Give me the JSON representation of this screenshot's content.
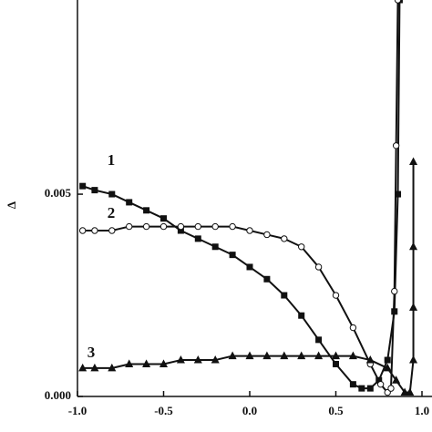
{
  "chart_data": {
    "type": "line",
    "y_label": "Δ",
    "xlim": [
      -1.0,
      1.0
    ],
    "ylim": [
      0,
      0.0098
    ],
    "xticks": [
      {
        "value": -1.0,
        "label": "-1.0"
      },
      {
        "value": -0.5,
        "label": "-0.5"
      },
      {
        "value": 0.0,
        "label": "0.0"
      },
      {
        "value": 0.5,
        "label": "0.5"
      },
      {
        "value": 1.0,
        "label": "1.0"
      }
    ],
    "yticks": [
      {
        "value": 0,
        "label": "0.000"
      },
      {
        "value": 0.005,
        "label": "0.005"
      }
    ],
    "annotations": [
      "1",
      "2",
      "3"
    ],
    "series": [
      {
        "name": "1",
        "color": "#111111",
        "marker": "square",
        "x": [
          -0.97,
          -0.9,
          -0.8,
          -0.7,
          -0.6,
          -0.5,
          -0.4,
          -0.3,
          -0.2,
          -0.1,
          0,
          0.1,
          0.2,
          0.3,
          0.4,
          0.5,
          0.6,
          0.65,
          0.7,
          0.75,
          0.8,
          0.84,
          0.86,
          0.87
        ],
        "values": [
          0.0052,
          0.0051,
          0.005,
          0.0048,
          0.0046,
          0.0044,
          0.0041,
          0.0039,
          0.0037,
          0.0035,
          0.0032,
          0.0029,
          0.0025,
          0.002,
          0.0014,
          0.0008,
          0.0003,
          0.0002,
          0.0002,
          0.0004,
          0.0009,
          0.0021,
          0.005,
          0.0098
        ]
      },
      {
        "name": "2",
        "color": "#111111",
        "marker": "circle",
        "x": [
          -0.97,
          -0.9,
          -0.8,
          -0.7,
          -0.6,
          -0.5,
          -0.4,
          -0.3,
          -0.2,
          -0.1,
          0,
          0.1,
          0.2,
          0.3,
          0.4,
          0.5,
          0.6,
          0.7,
          0.76,
          0.8,
          0.82,
          0.84,
          0.85,
          0.86
        ],
        "values": [
          0.0041,
          0.0041,
          0.0041,
          0.0042,
          0.0042,
          0.0042,
          0.0042,
          0.0042,
          0.0042,
          0.0042,
          0.0041,
          0.004,
          0.0039,
          0.0037,
          0.0032,
          0.0025,
          0.0017,
          0.0008,
          0.0003,
          0.0001,
          0.0002,
          0.0026,
          0.0062,
          0.0098
        ]
      },
      {
        "name": "3",
        "color": "#111111",
        "marker": "triangle",
        "x": [
          -0.97,
          -0.9,
          -0.8,
          -0.7,
          -0.6,
          -0.5,
          -0.4,
          -0.3,
          -0.2,
          -0.1,
          0,
          0.1,
          0.2,
          0.3,
          0.4,
          0.5,
          0.6,
          0.7,
          0.8,
          0.85,
          0.9,
          0.93,
          0.95,
          0.95,
          0.95,
          0.95
        ],
        "values": [
          0.0007,
          0.0007,
          0.0007,
          0.0008,
          0.0008,
          0.0008,
          0.0009,
          0.0009,
          0.0009,
          0.001,
          0.001,
          0.001,
          0.001,
          0.001,
          0.001,
          0.001,
          0.001,
          0.0009,
          0.0007,
          0.0004,
          0.0001,
          0.0001,
          0.0009,
          0.0022,
          0.0037,
          0.0058
        ]
      }
    ]
  }
}
